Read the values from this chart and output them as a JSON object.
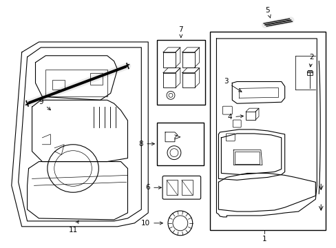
{
  "background_color": "#ffffff",
  "line_color": "#000000",
  "fig_width": 4.89,
  "fig_height": 3.6,
  "dpi": 100,
  "label_fontsize": 7.5,
  "lw": 0.8
}
